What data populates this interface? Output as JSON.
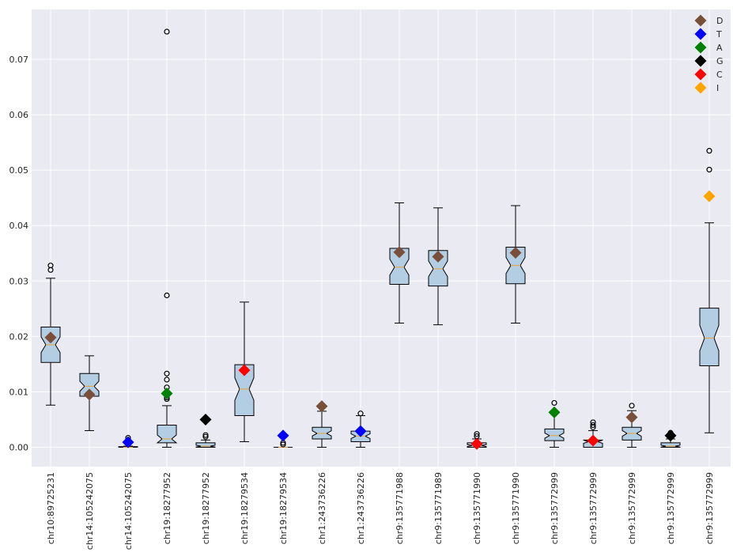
{
  "chart_data": {
    "type": "box",
    "title": "",
    "xlabel": "",
    "ylabel": "",
    "ylim": [
      -0.0035,
      0.079
    ],
    "yticks": [
      "0.00",
      "0.01",
      "0.02",
      "0.03",
      "0.04",
      "0.05",
      "0.06",
      "0.07"
    ],
    "grid": true,
    "legend_position": "top-right",
    "box_color": "#b3cde3",
    "median_color": "#e8a23b",
    "categories": [
      "chr10:89725231",
      "chr14:105242075",
      "chr14:105242075",
      "chr19:18277952",
      "chr19:18277952",
      "chr19:18279534",
      "chr19:18279534",
      "chr1:243736226",
      "chr1:243736226",
      "chr9:135771988",
      "chr9:135771989",
      "chr9:135771990",
      "chr9:135771990",
      "chr9:135772999",
      "chr9:135772999",
      "chr9:135772999",
      "chr9:135772999",
      "chr9:135772999"
    ],
    "boxes": [
      {
        "whislo": 0.0076,
        "q1": 0.0153,
        "med": 0.0185,
        "q3": 0.0217,
        "whishi": 0.0305,
        "fliers": [
          0.032,
          0.0328
        ]
      },
      {
        "whislo": 0.003,
        "q1": 0.0092,
        "med": 0.011,
        "q3": 0.0133,
        "whishi": 0.0165,
        "fliers": []
      },
      {
        "whislo": 0.0,
        "q1": 0.0,
        "med": 0.0,
        "q3": 0.0001,
        "whishi": 0.0002,
        "fliers": [
          0.0006,
          0.001,
          0.0013,
          0.0017
        ]
      },
      {
        "whislo": 0.0,
        "q1": 0.0008,
        "med": 0.0015,
        "q3": 0.004,
        "whishi": 0.0075,
        "fliers": [
          0.0087,
          0.009,
          0.0096,
          0.0108,
          0.0122,
          0.0133,
          0.0274,
          0.075
        ]
      },
      {
        "whislo": 0.0,
        "q1": 0.0,
        "med": 0.0002,
        "q3": 0.0008,
        "whishi": 0.0013,
        "fliers": [
          0.0019,
          0.0022
        ]
      },
      {
        "whislo": 0.001,
        "q1": 0.0057,
        "med": 0.0105,
        "q3": 0.0149,
        "whishi": 0.0262,
        "fliers": []
      },
      {
        "whislo": 0.0,
        "q1": 0.0,
        "med": 0.0,
        "q3": 0.0,
        "whishi": 0.0,
        "fliers": [
          0.0005,
          0.0008
        ]
      },
      {
        "whislo": 0.0,
        "q1": 0.0015,
        "med": 0.0025,
        "q3": 0.0036,
        "whishi": 0.0065,
        "fliers": []
      },
      {
        "whislo": 0.0,
        "q1": 0.001,
        "med": 0.002,
        "q3": 0.0029,
        "whishi": 0.0057,
        "fliers": [
          0.0061
        ]
      },
      {
        "whislo": 0.0224,
        "q1": 0.0294,
        "med": 0.0325,
        "q3": 0.0359,
        "whishi": 0.0441,
        "fliers": []
      },
      {
        "whislo": 0.0221,
        "q1": 0.0291,
        "med": 0.0322,
        "q3": 0.0355,
        "whishi": 0.0432,
        "fliers": []
      },
      {
        "whislo": 0.0,
        "q1": 0.0,
        "med": 0.0003,
        "q3": 0.0008,
        "whishi": 0.0015,
        "fliers": [
          0.002,
          0.0024
        ]
      },
      {
        "whislo": 0.0224,
        "q1": 0.0295,
        "med": 0.0328,
        "q3": 0.0361,
        "whishi": 0.0436,
        "fliers": []
      },
      {
        "whislo": 0.0,
        "q1": 0.0012,
        "med": 0.0021,
        "q3": 0.0033,
        "whishi": 0.0064,
        "fliers": [
          0.008
        ]
      },
      {
        "whislo": 0.0,
        "q1": 0.0,
        "med": 0.001,
        "q3": 0.0013,
        "whishi": 0.003,
        "fliers": [
          0.0036,
          0.004,
          0.0045
        ]
      },
      {
        "whislo": 0.0,
        "q1": 0.0013,
        "med": 0.0025,
        "q3": 0.0036,
        "whishi": 0.0066,
        "fliers": [
          0.0075
        ]
      },
      {
        "whislo": 0.0,
        "q1": 0.0,
        "med": 0.0002,
        "q3": 0.0008,
        "whishi": 0.0015,
        "fliers": [
          0.0022,
          0.0026
        ]
      },
      {
        "whislo": 0.0026,
        "q1": 0.0147,
        "med": 0.0197,
        "q3": 0.0251,
        "whishi": 0.0405,
        "fliers": [
          0.0501,
          0.0535
        ]
      }
    ],
    "markers": [
      {
        "index": 0,
        "label": "D",
        "value": 0.0198
      },
      {
        "index": 1,
        "label": "D",
        "value": 0.0095
      },
      {
        "index": 2,
        "label": "T",
        "value": 0.0009
      },
      {
        "index": 3,
        "label": "A",
        "value": 0.0097
      },
      {
        "index": 4,
        "label": "G",
        "value": 0.005
      },
      {
        "index": 5,
        "label": "C",
        "value": 0.0139
      },
      {
        "index": 6,
        "label": "T",
        "value": 0.0021
      },
      {
        "index": 7,
        "label": "D",
        "value": 0.0074
      },
      {
        "index": 8,
        "label": "T",
        "value": 0.0029
      },
      {
        "index": 9,
        "label": "D",
        "value": 0.0352
      },
      {
        "index": 10,
        "label": "D",
        "value": 0.0344
      },
      {
        "index": 11,
        "label": "C",
        "value": 0.0006
      },
      {
        "index": 12,
        "label": "D",
        "value": 0.0351
      },
      {
        "index": 13,
        "label": "A",
        "value": 0.0063
      },
      {
        "index": 14,
        "label": "C",
        "value": 0.0012
      },
      {
        "index": 15,
        "label": "D",
        "value": 0.0054
      },
      {
        "index": 16,
        "label": "G",
        "value": 0.0021
      },
      {
        "index": 17,
        "label": "I",
        "value": 0.0453
      }
    ],
    "legend": [
      {
        "label": "D",
        "color": "#7a4f3a"
      },
      {
        "label": "T",
        "color": "#0000ff"
      },
      {
        "label": "A",
        "color": "#008000"
      },
      {
        "label": "G",
        "color": "#000000"
      },
      {
        "label": "C",
        "color": "#ff0000"
      },
      {
        "label": "I",
        "color": "#ffa500"
      }
    ]
  }
}
